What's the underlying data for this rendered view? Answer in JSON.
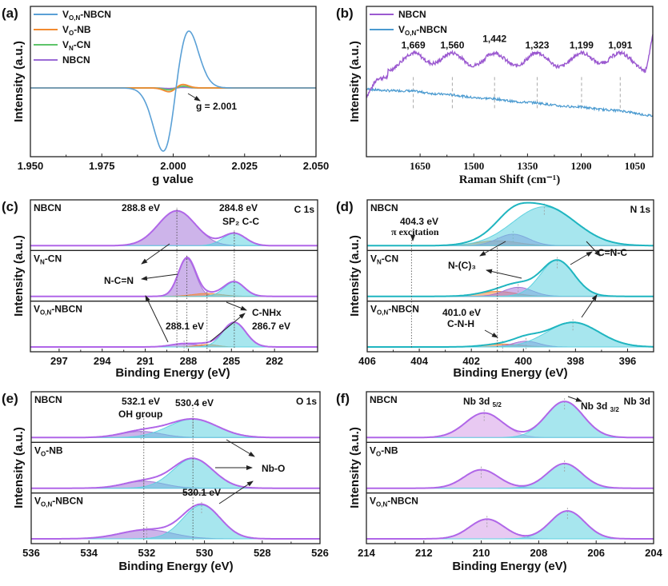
{
  "chart_data": [
    {
      "id": "a",
      "panel_label": "(a)",
      "type": "line",
      "title": "",
      "xlabel": "g value",
      "ylabel": "Intensity (a.u.)",
      "xlim": [
        1.95,
        2.05
      ],
      "x_reversed": false,
      "ylim": [
        -1.15,
        1.15
      ],
      "xticks": [
        1.95,
        1.975,
        2.0,
        2.025,
        2.05
      ],
      "xtick_labels": [
        "1.950",
        "1.975",
        "2.000",
        "2.025",
        "2.050"
      ],
      "legend_position": "top-left",
      "series": [
        {
          "name": "V_{O,N}-NBCN",
          "color": "#5aa0d6",
          "model": "derivative",
          "center": 2.001,
          "width": 0.0045,
          "amplitude": 1.0
        },
        {
          "name": "V_{O}-NB",
          "color": "#f28a30",
          "model": "derivative",
          "center": 2.001,
          "width": 0.0025,
          "amplitude": 0.06
        },
        {
          "name": "V_{N}-CN",
          "color": "#5ec46a",
          "model": "derivative",
          "center": 2.001,
          "width": 0.0025,
          "amplitude": 0.03
        },
        {
          "name": "NBCN",
          "color": "#9b6bd6",
          "model": "derivative",
          "center": 2.001,
          "width": 0.0025,
          "amplitude": 0.01
        }
      ],
      "annotations": [
        {
          "text": "g = 2.001",
          "x": 2.001,
          "y": 0
        }
      ]
    },
    {
      "id": "b",
      "panel_label": "(b)",
      "type": "line",
      "title": "",
      "xlabel": "Raman Shift (cm⁻¹)",
      "ylabel": "Intensity (a.u.)",
      "xlim": [
        1800,
        1000
      ],
      "x_reversed": true,
      "ylim": [
        0,
        1
      ],
      "xticks": [
        1650,
        1500,
        1350,
        1200,
        1050
      ],
      "xtick_labels": [
        "1650",
        "1500",
        "1350",
        "1200",
        "1050"
      ],
      "legend_position": "top-left",
      "series": [
        {
          "name": "NBCN",
          "color": "#9b59d0",
          "baseline": 0.6,
          "peaks": [
            1669,
            1560,
            1442,
            1323,
            1199,
            1091
          ],
          "peak_height": 0.13
        },
        {
          "name": "V_{O,N}-NBCN",
          "color": "#4a9ad0",
          "baseline_start": 0.45,
          "baseline_end": 0.27
        }
      ],
      "peak_labels": [
        "1,669",
        "1,560",
        "1,442",
        "1,323",
        "1,199",
        "1,091"
      ],
      "peak_positions": [
        1669,
        1560,
        1442,
        1323,
        1199,
        1091
      ]
    },
    {
      "id": "c",
      "panel_label": "(c)",
      "type": "area",
      "title": "C 1s",
      "xlabel": "Binding Energy (eV)",
      "ylabel": "Intensity (a.u.)",
      "xlim": [
        299,
        279
      ],
      "x_reversed": true,
      "xticks": [
        297,
        294,
        291,
        288,
        285,
        282
      ],
      "xtick_labels": [
        "297",
        "294",
        "291",
        "288",
        "285",
        "282"
      ],
      "stacks": [
        {
          "name": "NBCN",
          "peaks": [
            {
              "center": 288.8,
              "height": 0.85,
              "width": 1.3,
              "color": "#a477d8"
            },
            {
              "center": 284.8,
              "height": 0.3,
              "width": 0.8,
              "color": "#5fd2e0"
            }
          ]
        },
        {
          "name": "V_{N}-CN",
          "peaks": [
            {
              "center": 288.1,
              "height": 0.92,
              "width": 0.6,
              "color": "#a477d8"
            },
            {
              "center": 286.7,
              "height": 0.07,
              "width": 1.0,
              "color": "#f08a40"
            },
            {
              "center": 284.8,
              "height": 0.35,
              "width": 0.7,
              "color": "#5fd2e0"
            }
          ]
        },
        {
          "name": "V_{O,N}-NBCN",
          "peaks": [
            {
              "center": 288.3,
              "height": 0.08,
              "width": 0.9,
              "color": "#a477d8"
            },
            {
              "center": 286.7,
              "height": 0.06,
              "width": 0.7,
              "color": "#f08a40"
            },
            {
              "center": 284.8,
              "height": 0.6,
              "width": 0.8,
              "color": "#5fd2e0"
            }
          ]
        }
      ],
      "annotations": [
        "288.8 eV",
        "284.8 eV",
        "SP₂ C-C",
        "N-C=N",
        "288.1 eV",
        "C-NHx",
        "286.7 eV"
      ]
    },
    {
      "id": "d",
      "panel_label": "(d)",
      "type": "area",
      "title": "N 1s",
      "xlabel": "Binding Energy (eV)",
      "ylabel": "Intensity (a.u.)",
      "xlim": [
        406,
        395
      ],
      "x_reversed": true,
      "xticks": [
        406,
        404,
        402,
        400,
        398,
        396
      ],
      "xtick_labels": [
        "406",
        "404",
        "402",
        "400",
        "398",
        "396"
      ],
      "stacks": [
        {
          "name": "NBCN",
          "peaks": [
            {
              "center": 401.0,
              "height": 0.12,
              "width": 0.8,
              "color": "#f08a40"
            },
            {
              "center": 400.4,
              "height": 0.28,
              "width": 0.6,
              "color": "#a477d8"
            },
            {
              "center": 399.2,
              "height": 0.95,
              "width": 1.2,
              "color": "#5fd2e0"
            }
          ]
        },
        {
          "name": "V_{N}-CN",
          "peaks": [
            {
              "center": 401.0,
              "height": 0.12,
              "width": 0.7,
              "color": "#f08a40"
            },
            {
              "center": 400.2,
              "height": 0.22,
              "width": 0.55,
              "color": "#a477d8"
            },
            {
              "center": 398.7,
              "height": 0.88,
              "width": 0.65,
              "color": "#5fd2e0"
            }
          ]
        },
        {
          "name": "V_{O,N}-NBCN",
          "peaks": [
            {
              "center": 400.8,
              "height": 0.07,
              "width": 0.7,
              "color": "#f08a40"
            },
            {
              "center": 399.9,
              "height": 0.14,
              "width": 0.5,
              "color": "#a477d8"
            },
            {
              "center": 398.1,
              "height": 0.6,
              "width": 1.0,
              "color": "#5fd2e0"
            }
          ]
        }
      ],
      "annotations": [
        "404.3 eV",
        "π excitation",
        "N-(C)₃",
        "C=N-C",
        "401.0 eV",
        "C-N-H"
      ]
    },
    {
      "id": "e",
      "panel_label": "(e)",
      "type": "area",
      "title": "O 1s",
      "xlabel": "Binding Energy (eV)",
      "ylabel": "Intensity (a.u.)",
      "xlim": [
        536,
        526
      ],
      "x_reversed": true,
      "xticks": [
        536,
        534,
        532,
        530,
        528,
        526
      ],
      "xtick_labels": [
        "536",
        "534",
        "532",
        "530",
        "528",
        "526"
      ],
      "stacks": [
        {
          "name": "NBCN",
          "peaks": [
            {
              "center": 532.2,
              "height": 0.15,
              "width": 0.7,
              "color": "#a477d8"
            },
            {
              "center": 530.4,
              "height": 0.45,
              "width": 0.85,
              "color": "#5fd2e0"
            }
          ]
        },
        {
          "name": "V_{O}-NB",
          "peaks": [
            {
              "center": 532.1,
              "height": 0.17,
              "width": 0.7,
              "color": "#a477d8"
            },
            {
              "center": 530.4,
              "height": 0.72,
              "width": 0.7,
              "color": "#5fd2e0"
            }
          ]
        },
        {
          "name": "V_{O,N}-NBCN",
          "peaks": [
            {
              "center": 532.0,
              "height": 0.22,
              "width": 0.9,
              "color": "#a477d8"
            },
            {
              "center": 530.1,
              "height": 0.82,
              "width": 0.65,
              "color": "#5fd2e0"
            }
          ]
        }
      ],
      "annotations": [
        "532.1 eV",
        "OH group",
        "530.4 eV",
        "Nb-O",
        "530.1 eV"
      ]
    },
    {
      "id": "f",
      "panel_label": "(f)",
      "type": "area",
      "title": "Nb 3d",
      "xlabel": "Binding Energy (eV)",
      "ylabel": "Intensity (a.u.)",
      "xlim": [
        214,
        204
      ],
      "x_reversed": true,
      "xticks": [
        214,
        212,
        210,
        208,
        206,
        204
      ],
      "xtick_labels": [
        "214",
        "212",
        "210",
        "208",
        "206",
        "204"
      ],
      "stacks": [
        {
          "name": "NBCN",
          "peaks": [
            {
              "center": 209.9,
              "height": 0.6,
              "width": 0.65,
              "color": "#d69ce8"
            },
            {
              "center": 207.1,
              "height": 0.88,
              "width": 0.65,
              "color": "#5fd2e0"
            }
          ]
        },
        {
          "name": "V_{O}-NB",
          "peaks": [
            {
              "center": 210.0,
              "height": 0.45,
              "width": 0.6,
              "color": "#d69ce8"
            },
            {
              "center": 207.1,
              "height": 0.6,
              "width": 0.6,
              "color": "#5fd2e0"
            }
          ]
        },
        {
          "name": "V_{O,N}-NBCN",
          "peaks": [
            {
              "center": 209.8,
              "height": 0.48,
              "width": 0.6,
              "color": "#d69ce8"
            },
            {
              "center": 207.0,
              "height": 0.68,
              "width": 0.6,
              "color": "#5fd2e0"
            }
          ]
        }
      ],
      "annotations": [
        "Nb 3d 5/2",
        "Nb 3d 3/2"
      ]
    }
  ]
}
